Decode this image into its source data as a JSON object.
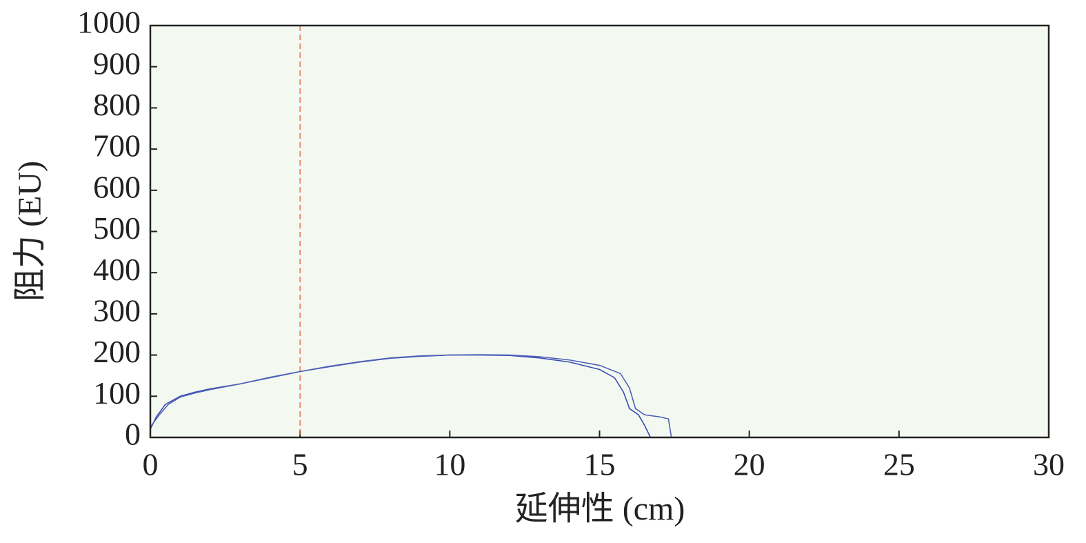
{
  "chart_data": {
    "type": "line",
    "xlabel": "延伸性 (cm)",
    "ylabel": "阻力 (EU)",
    "xlim": [
      0,
      30
    ],
    "ylim": [
      0,
      1000
    ],
    "xticks": [
      0,
      5,
      10,
      15,
      20,
      25,
      30
    ],
    "yticks": [
      0,
      100,
      200,
      300,
      400,
      500,
      600,
      700,
      800,
      900,
      1000
    ],
    "background": "#f3f8f1",
    "reference_line": {
      "x": 5,
      "color": "#e0603c",
      "style": "dashed"
    },
    "series": [
      {
        "color": "#3a4db2",
        "x": [
          0,
          0.2,
          0.5,
          1,
          1.5,
          2,
          3,
          4,
          5,
          6,
          7,
          8,
          9,
          10,
          11,
          12,
          13,
          14,
          15,
          15.5,
          15.8,
          16,
          16.3,
          16.5,
          16.7
        ],
        "values": [
          20,
          50,
          80,
          100,
          110,
          118,
          130,
          145,
          160,
          172,
          183,
          192,
          197,
          200,
          200,
          199,
          193,
          183,
          165,
          145,
          110,
          70,
          55,
          30,
          0
        ]
      },
      {
        "color": "#5060b8",
        "x": [
          0,
          0.3,
          0.6,
          1,
          1.5,
          2,
          3,
          4,
          5,
          6,
          7,
          8,
          9,
          10,
          11,
          12,
          13,
          14,
          15,
          15.7,
          16,
          16.2,
          16.5,
          17,
          17.3,
          17.4
        ],
        "values": [
          25,
          55,
          80,
          98,
          108,
          116,
          130,
          146,
          160,
          173,
          184,
          193,
          198,
          200,
          201,
          200,
          196,
          188,
          175,
          155,
          120,
          70,
          55,
          50,
          45,
          0
        ]
      }
    ]
  }
}
